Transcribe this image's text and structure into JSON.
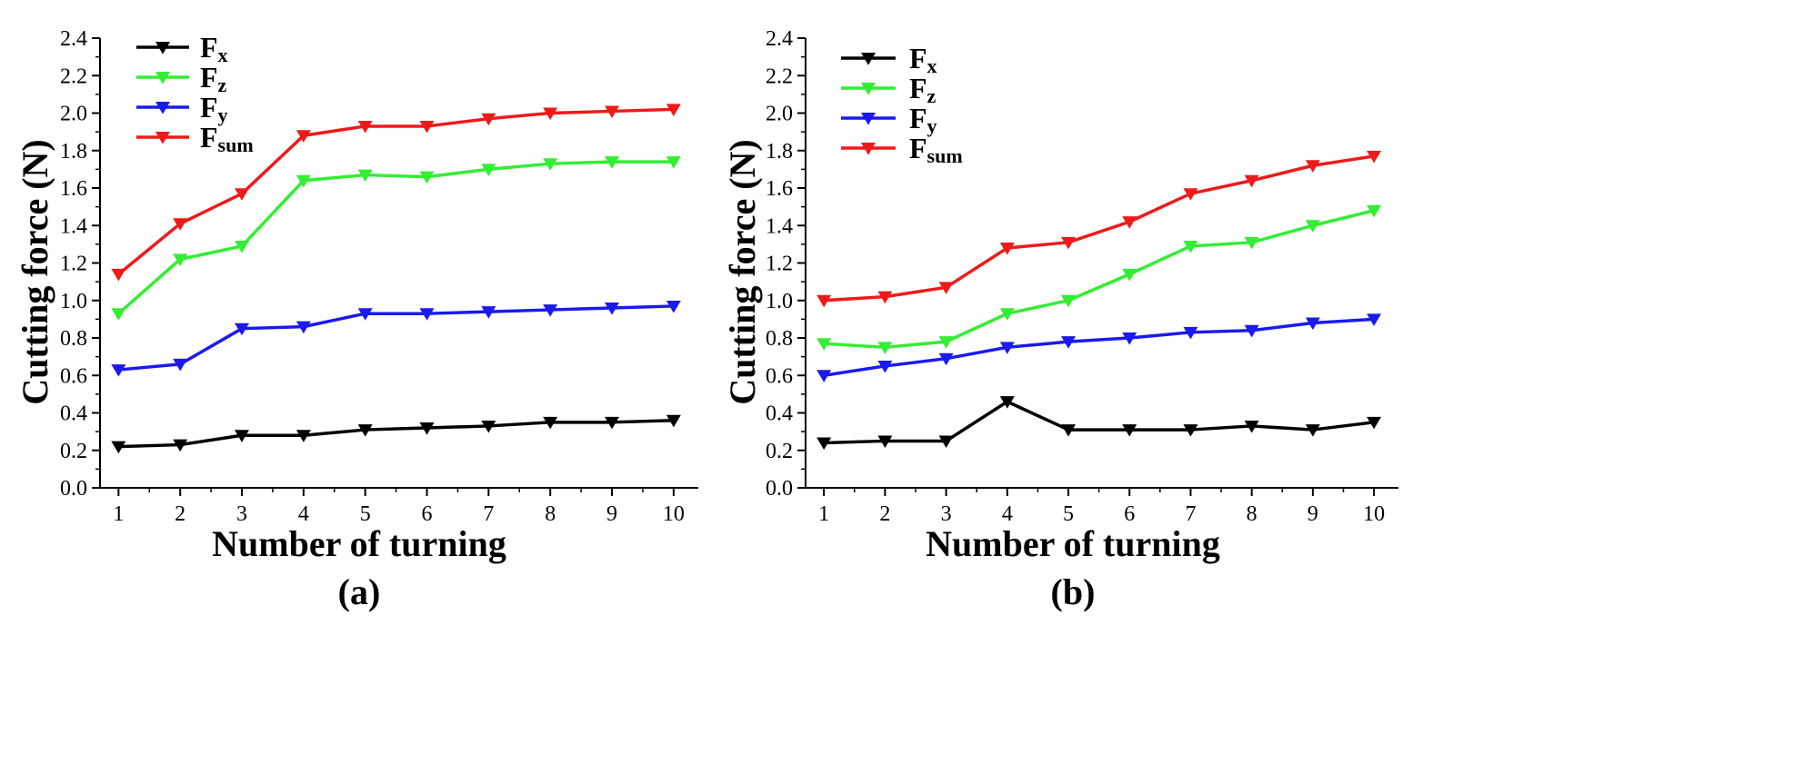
{
  "chart_data": [
    {
      "type": "line",
      "panel_label": "(a)",
      "xlabel": "Number of turning",
      "ylabel": "Cutting force (N)",
      "xlim": [
        0.7,
        10.4
      ],
      "ylim": [
        0.0,
        2.4
      ],
      "xticks": [
        1,
        2,
        3,
        4,
        5,
        6,
        7,
        8,
        9,
        10
      ],
      "yticks": [
        0.0,
        0.2,
        0.4,
        0.6,
        0.8,
        1.0,
        1.2,
        1.4,
        1.6,
        1.8,
        2.0,
        2.2,
        2.4
      ],
      "ytick_labels": [
        "0.0",
        "0.2",
        "0.4",
        "0.6",
        "0.8",
        "1.0",
        "1.2",
        "1.4",
        "1.6",
        "1.8",
        "2.0",
        "2.2",
        "2.4"
      ],
      "legend_position": "top-left",
      "x": [
        1,
        2,
        3,
        4,
        5,
        6,
        7,
        8,
        9,
        10
      ],
      "series": [
        {
          "name": "F",
          "subscript": "x",
          "color": "#000000",
          "values": [
            0.22,
            0.23,
            0.28,
            0.28,
            0.31,
            0.32,
            0.33,
            0.35,
            0.35,
            0.36
          ]
        },
        {
          "name": "F",
          "subscript": "z",
          "color": "#33ee33",
          "values": [
            0.93,
            1.22,
            1.29,
            1.64,
            1.67,
            1.66,
            1.7,
            1.73,
            1.74,
            1.74
          ]
        },
        {
          "name": "F",
          "subscript": "y",
          "color": "#1a1aee",
          "values": [
            0.63,
            0.66,
            0.85,
            0.86,
            0.93,
            0.93,
            0.94,
            0.95,
            0.96,
            0.97
          ]
        },
        {
          "name": "F",
          "subscript": "sum",
          "color": "#ee1a1a",
          "values": [
            1.14,
            1.41,
            1.57,
            1.88,
            1.93,
            1.93,
            1.97,
            2.0,
            2.01,
            2.02
          ]
        }
      ]
    },
    {
      "type": "line",
      "panel_label": "(b)",
      "xlabel": "Number of turning",
      "ylabel": "Cutting force (N)",
      "xlim": [
        0.7,
        10.4
      ],
      "ylim": [
        0.0,
        2.4
      ],
      "xticks": [
        1,
        2,
        3,
        4,
        5,
        6,
        7,
        8,
        9,
        10
      ],
      "yticks": [
        0.0,
        0.2,
        0.4,
        0.6,
        0.8,
        1.0,
        1.2,
        1.4,
        1.6,
        1.8,
        2.0,
        2.2,
        2.4
      ],
      "ytick_labels": [
        "0.0",
        "0.2",
        "0.4",
        "0.6",
        "0.8",
        "1.0",
        "1.2",
        "1.4",
        "1.6",
        "1.8",
        "2.0",
        "2.2",
        "2.4"
      ],
      "legend_position": "top-left",
      "x": [
        1,
        2,
        3,
        4,
        5,
        6,
        7,
        8,
        9,
        10
      ],
      "series": [
        {
          "name": "F",
          "subscript": "x",
          "color": "#000000",
          "values": [
            0.24,
            0.25,
            0.25,
            0.46,
            0.31,
            0.31,
            0.31,
            0.33,
            0.31,
            0.35
          ]
        },
        {
          "name": "F",
          "subscript": "z",
          "color": "#33ee33",
          "values": [
            0.77,
            0.75,
            0.78,
            0.93,
            1.0,
            1.14,
            1.29,
            1.31,
            1.4,
            1.48
          ]
        },
        {
          "name": "F",
          "subscript": "y",
          "color": "#1a1aee",
          "values": [
            0.6,
            0.65,
            0.69,
            0.75,
            0.78,
            0.8,
            0.83,
            0.84,
            0.88,
            0.9
          ]
        },
        {
          "name": "F",
          "subscript": "sum",
          "color": "#ee1a1a",
          "values": [
            1.0,
            1.02,
            1.07,
            1.28,
            1.31,
            1.42,
            1.57,
            1.64,
            1.72,
            1.77
          ]
        }
      ]
    }
  ]
}
